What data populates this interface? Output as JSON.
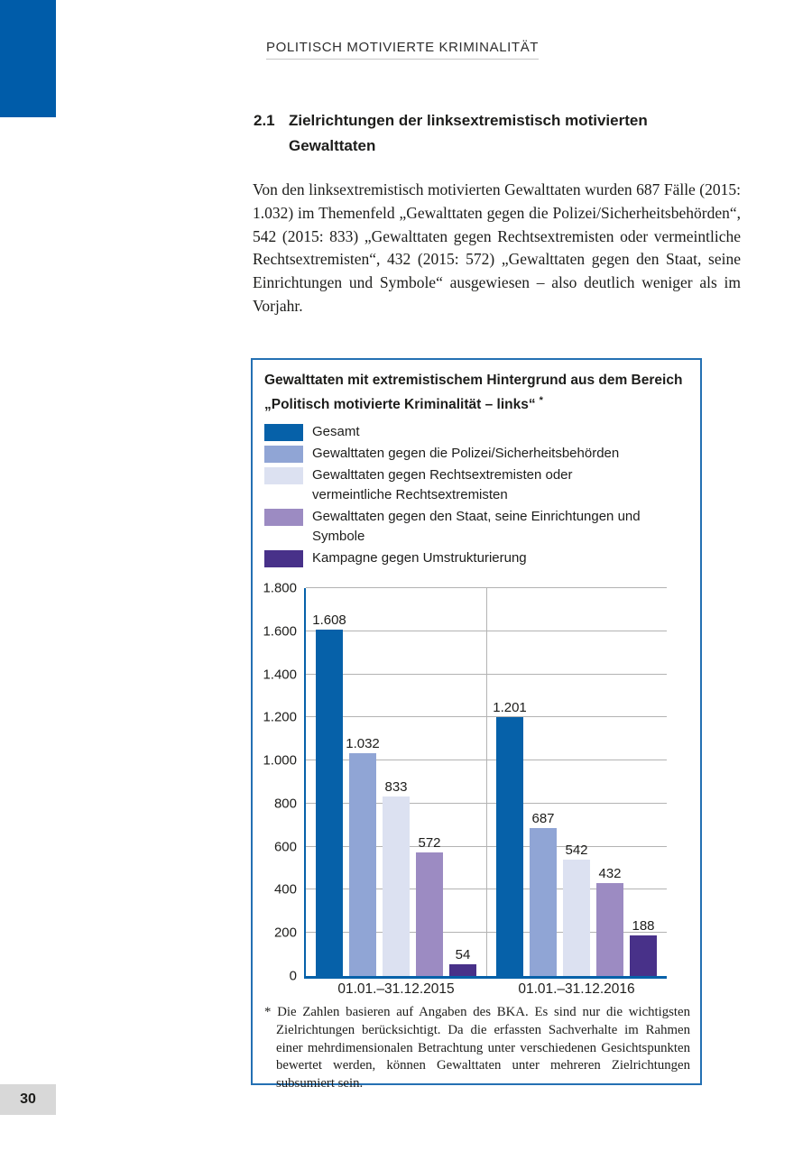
{
  "page": {
    "running_head": "POLITISCH MOTIVIERTE KRIMINALITÄT",
    "page_number": "30"
  },
  "section": {
    "number": "2.1",
    "title": "Zielrichtungen der linksextremistisch motivierten Gewalttaten"
  },
  "paragraph": "Von den linksextremistisch motivierten Gewalttaten wurden 687 Fälle (2015: 1.032) im Themenfeld „Gewalttaten gegen die Polizei/Sicherheitsbehörden“, 542 (2015: 833) „Gewalttaten gegen Rechtsextremisten oder vermeintliche Rechtsextremisten“, 432 (2015: 572) „Gewalttaten gegen den Staat, seine Einrichtungen und Symbole“ ausgewiesen – also deutlich weniger als im Vorjahr.",
  "chart_data": {
    "type": "bar",
    "title": "Gewalttaten mit extremistischem Hintergrund aus dem Bereich „Politisch motivierte Kriminalität – links“",
    "footnote_marker": "*",
    "footnote": "Die Zahlen basieren auf Angaben des BKA. Es sind nur die wichtigsten Zielrichtungen berücksichtigt. Da die erfassten Sachverhalte im Rahmen einer mehrdimensionalen Betrachtung unter verschiedenen Gesichtspunkten bewertet werden, können Gewalttaten unter mehreren Zielrichtungen subsumiert sein.",
    "categories": [
      "01.01.–31.12.2015",
      "01.01.–31.12.2016"
    ],
    "series": [
      {
        "name": "Gesamt",
        "color": "#0661A9",
        "values": [
          1608,
          1201
        ],
        "labels": [
          "1.608",
          "1.201"
        ]
      },
      {
        "name": "Gewalttaten gegen die Polizei/Sicherheitsbehörden",
        "color": "#90A5D5",
        "values": [
          1032,
          687
        ],
        "labels": [
          "1.032",
          "687"
        ]
      },
      {
        "name": "Gewalttaten gegen Rechtsextremisten oder vermeintliche Rechtsextremisten",
        "color": "#DCE1F1",
        "values": [
          833,
          542
        ],
        "labels": [
          "833",
          "542"
        ]
      },
      {
        "name": "Gewalttaten gegen den Staat, seine Einrichtungen und Symbole",
        "color": "#9C8BC2",
        "values": [
          572,
          432
        ],
        "labels": [
          "572",
          "432"
        ]
      },
      {
        "name": "Kampagne gegen Umstrukturierung",
        "color": "#483189",
        "values": [
          54,
          188
        ],
        "labels": [
          "54",
          "188"
        ]
      }
    ],
    "ylim": [
      0,
      1800
    ],
    "yticks": [
      {
        "value": 0,
        "label": "0"
      },
      {
        "value": 200,
        "label": "200"
      },
      {
        "value": 400,
        "label": "400"
      },
      {
        "value": 600,
        "label": "600"
      },
      {
        "value": 800,
        "label": "800"
      },
      {
        "value": 1000,
        "label": "1.000"
      },
      {
        "value": 1200,
        "label": "1.200"
      },
      {
        "value": 1400,
        "label": "1.400"
      },
      {
        "value": 1600,
        "label": "1.600"
      },
      {
        "value": 1800,
        "label": "1.800"
      }
    ],
    "grid": true,
    "legend_position": "top",
    "xlabel": "",
    "ylabel": ""
  }
}
